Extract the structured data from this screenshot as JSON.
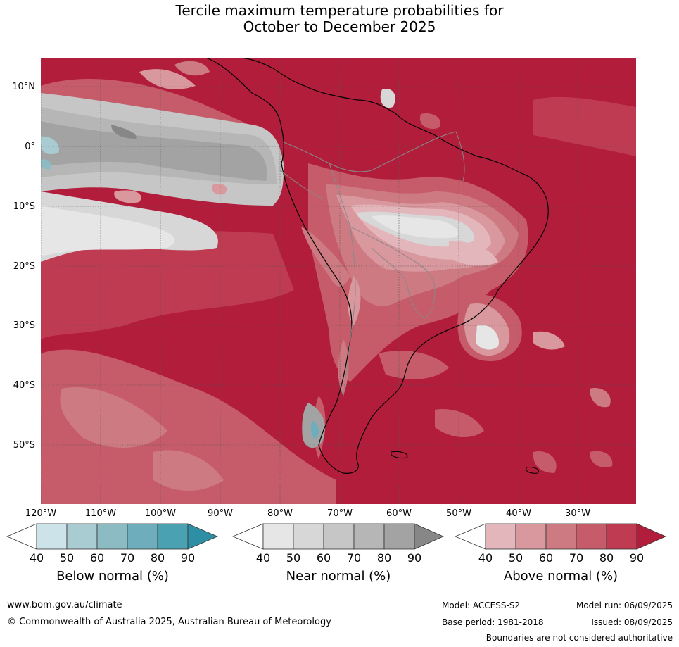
{
  "title": {
    "line1": "Tercile maximum temperature probabilities for",
    "line2": "October to December 2025"
  },
  "lat_labels": [
    "10°N",
    "0°",
    "10°S",
    "20°S",
    "30°S",
    "40°S",
    "50°S"
  ],
  "lon_labels": [
    "120°W",
    "110°W",
    "100°W",
    "90°W",
    "80°W",
    "70°W",
    "60°W",
    "50°W",
    "40°W",
    "30°W"
  ],
  "colorbars": [
    {
      "title": "Below normal (%)",
      "ticks": [
        "40",
        "50",
        "60",
        "70",
        "80",
        "90"
      ],
      "colors": [
        "#ffffff",
        "#cde3ea",
        "#a9cbd2",
        "#8dbbc4",
        "#6eadbb",
        "#4aa1b1",
        "#2e8fa4"
      ]
    },
    {
      "title": "Near normal (%)",
      "ticks": [
        "40",
        "50",
        "60",
        "70",
        "80",
        "90"
      ],
      "colors": [
        "#ffffff",
        "#e6e6e6",
        "#d7d7d7",
        "#c6c6c6",
        "#b6b6b6",
        "#a3a3a3",
        "#878787"
      ]
    },
    {
      "title": "Above normal (%)",
      "ticks": [
        "40",
        "50",
        "60",
        "70",
        "80",
        "90"
      ],
      "colors": [
        "#ffffff",
        "#e2b6bb",
        "#d9979e",
        "#cd7a83",
        "#c65c6a",
        "#be3b51",
        "#b21d3c"
      ]
    }
  ],
  "footer": {
    "website": "www.bom.gov.au/climate",
    "copyright": "© Commonwealth of Australia 2025, Australian Bureau of Meteorology",
    "model": "Model: ACCESS-S2",
    "base_period": "Base period: 1981-2018",
    "model_run": "Model run: 06/09/2025",
    "issued": "Issued: 08/09/2025",
    "disclaimer": "Boundaries are not considered authoritative"
  }
}
